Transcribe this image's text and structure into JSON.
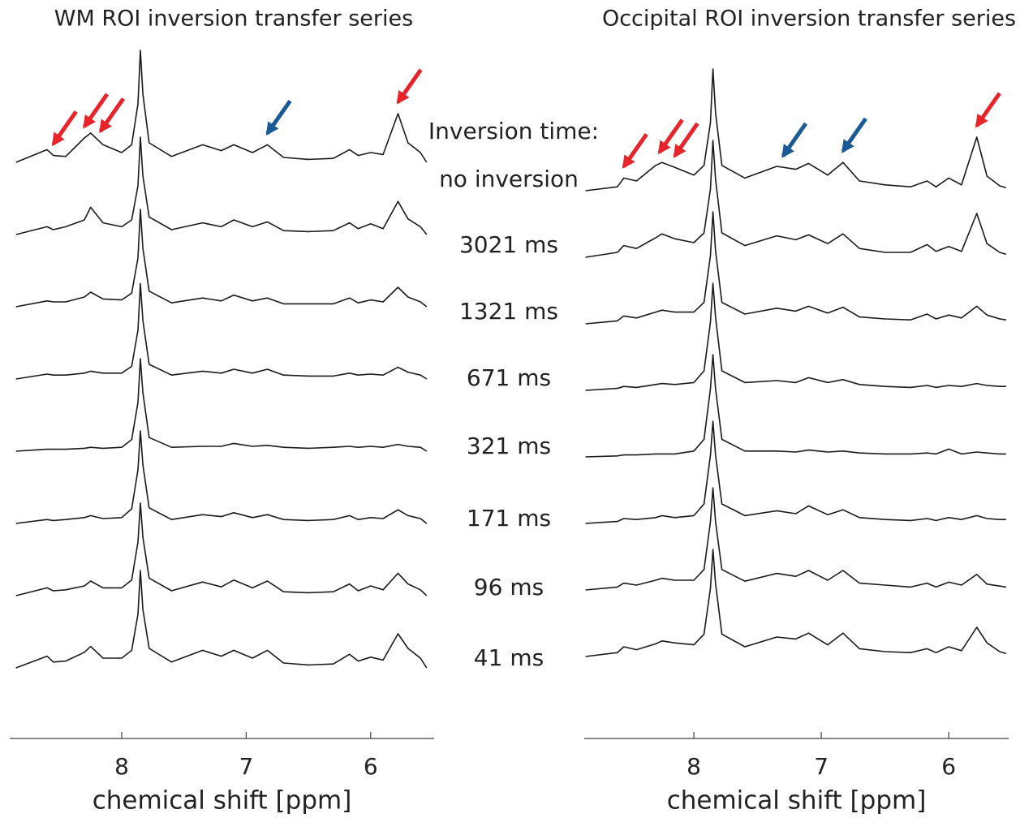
{
  "chart_data": [
    {
      "type": "line",
      "title": "WM ROI inversion transfer series",
      "xlabel": "chemical shift [ppm]",
      "xlim": [
        8.9,
        5.49
      ],
      "xticks": [
        8,
        7,
        6
      ],
      "annotation": "Inversion time:",
      "x": [
        8.85,
        8.6,
        8.55,
        8.45,
        8.3,
        8.25,
        8.15,
        8.0,
        7.92,
        7.87,
        7.85,
        7.83,
        7.78,
        7.6,
        7.35,
        7.2,
        7.1,
        6.95,
        6.83,
        6.7,
        6.5,
        6.3,
        6.17,
        6.1,
        6.0,
        5.9,
        5.78,
        5.7,
        5.6,
        5.55
      ],
      "series": [
        {
          "name": "no inversion",
          "color": "#1a1a1a",
          "values": [
            0,
            1.3,
            0.7,
            0.6,
            2.5,
            3.0,
            1.8,
            1.0,
            1.8,
            6.0,
            11.5,
            7.0,
            2.0,
            0.6,
            1.8,
            1.2,
            1.8,
            1.0,
            1.8,
            0.5,
            0.3,
            0.4,
            1.3,
            0.7,
            1.0,
            0.8,
            5.0,
            2.0,
            1.0,
            0
          ]
        },
        {
          "name": "3021 ms",
          "color": "#1a1a1a",
          "values": [
            0,
            0.8,
            0.5,
            0.8,
            1.5,
            2.8,
            1.2,
            0.8,
            1.5,
            5,
            10,
            6,
            1.8,
            0.5,
            1.2,
            0.8,
            1.5,
            0.8,
            1.3,
            0.4,
            0.3,
            0.4,
            1.2,
            0.6,
            1.1,
            0.6,
            3.4,
            1.6,
            0.8,
            0
          ]
        },
        {
          "name": "1321 ms",
          "color": "#1a1a1a",
          "values": [
            0,
            0.6,
            0.5,
            0.5,
            1.0,
            1.5,
            0.8,
            0.7,
            1.4,
            5,
            10,
            6,
            1.6,
            0.4,
            0.9,
            0.6,
            1.2,
            0.6,
            0.9,
            0.3,
            0.3,
            0.3,
            0.9,
            0.4,
            0.7,
            0.5,
            2.0,
            1.0,
            0.5,
            0
          ]
        },
        {
          "name": "671 ms",
          "color": "#1a1a1a",
          "values": [
            0,
            0.5,
            0.4,
            0.4,
            0.6,
            0.8,
            0.6,
            0.6,
            1.3,
            5,
            9.8,
            6,
            1.5,
            0.4,
            0.8,
            0.6,
            1.0,
            0.6,
            1.0,
            0.4,
            0.3,
            0.3,
            0.6,
            0.4,
            0.5,
            0.4,
            1.2,
            0.7,
            0.4,
            0
          ]
        },
        {
          "name": "321 ms",
          "color": "#1a1a1a",
          "values": [
            0,
            0.2,
            0.2,
            0.2,
            0.3,
            0.4,
            0.3,
            0.4,
            1.2,
            5,
            9.5,
            6,
            1.4,
            0.4,
            0.5,
            0.5,
            0.8,
            0.5,
            0.6,
            0.4,
            0.3,
            0.4,
            0.5,
            0.4,
            0.5,
            0.4,
            0.7,
            0.5,
            0.4,
            0
          ]
        },
        {
          "name": "171 ms",
          "color": "#1a1a1a",
          "values": [
            0,
            0.4,
            0.3,
            0.4,
            0.6,
            0.8,
            0.5,
            0.6,
            1.5,
            5.5,
            9.5,
            6,
            1.6,
            0.4,
            0.9,
            0.7,
            1.1,
            0.6,
            0.9,
            0.4,
            0.3,
            0.4,
            0.8,
            0.4,
            0.6,
            0.5,
            1.4,
            0.8,
            0.5,
            0
          ]
        },
        {
          "name": "96 ms",
          "color": "#1a1a1a",
          "values": [
            0,
            0.8,
            0.5,
            0.6,
            1.0,
            1.5,
            0.8,
            0.8,
            1.6,
            5.5,
            9.5,
            6,
            1.8,
            0.5,
            1.4,
            0.9,
            1.6,
            0.8,
            1.5,
            0.4,
            0.3,
            0.4,
            1.2,
            0.5,
            1.0,
            0.6,
            2.3,
            1.2,
            0.6,
            0
          ]
        },
        {
          "name": "41 ms",
          "color": "#1a1a1a",
          "values": [
            0,
            1.2,
            0.6,
            0.7,
            1.6,
            2.2,
            1.0,
            1.0,
            1.8,
            5.5,
            10,
            6,
            2.0,
            0.6,
            1.8,
            1.2,
            1.8,
            1.0,
            1.8,
            0.5,
            0.3,
            0.4,
            1.4,
            0.7,
            1.1,
            0.8,
            3.5,
            2.0,
            1.0,
            0
          ]
        }
      ],
      "arrows": [
        {
          "x": 8.55,
          "color": "#e8232a"
        },
        {
          "x": 8.3,
          "color": "#e8232a"
        },
        {
          "x": 8.17,
          "color": "#e8232a"
        },
        {
          "x": 6.83,
          "color": "#1a5a96"
        },
        {
          "x": 5.78,
          "color": "#e8232a"
        }
      ]
    },
    {
      "type": "line",
      "title": "Occipital ROI inversion transfer series",
      "xlabel": "chemical shift [ppm]",
      "xlim": [
        8.86,
        5.53
      ],
      "xticks": [
        8,
        7,
        6
      ],
      "x": [
        8.85,
        8.6,
        8.55,
        8.45,
        8.3,
        8.25,
        8.15,
        8.0,
        7.92,
        7.87,
        7.85,
        7.83,
        7.78,
        7.6,
        7.35,
        7.2,
        7.1,
        6.95,
        6.83,
        6.7,
        6.5,
        6.3,
        6.17,
        6.1,
        6.0,
        5.9,
        5.78,
        5.7,
        5.6,
        5.55
      ],
      "series": [
        {
          "color": "#1a1a1a",
          "values": [
            0,
            0.4,
            1.3,
            1.0,
            2.6,
            2.9,
            2.4,
            1.6,
            2.6,
            7,
            12.5,
            8,
            2.6,
            1.3,
            2.5,
            2.2,
            2.8,
            1.6,
            2.9,
            1.0,
            0.6,
            0.4,
            1.0,
            0.4,
            1.3,
            0.6,
            5.5,
            1.5,
            0.5,
            0.3
          ]
        },
        {
          "color": "#1a1a1a",
          "values": [
            0,
            0.5,
            1.2,
            0.9,
            2.0,
            2.4,
            1.9,
            1.5,
            2.5,
            7,
            12,
            8,
            2.5,
            1.2,
            2.2,
            1.8,
            2.3,
            1.4,
            2.4,
            0.9,
            0.5,
            0.5,
            1.3,
            0.6,
            1.1,
            0.6,
            4.5,
            1.4,
            0.5,
            0.3
          ]
        },
        {
          "color": "#1a1a1a",
          "values": [
            0,
            0.3,
            0.8,
            0.6,
            1.2,
            1.4,
            1.2,
            1.2,
            2.2,
            7,
            11.5,
            7.5,
            2.2,
            1.0,
            1.6,
            1.3,
            1.8,
            1.1,
            1.7,
            0.7,
            0.5,
            0.4,
            1.0,
            0.5,
            0.9,
            0.6,
            1.8,
            0.9,
            0.5,
            0.4
          ]
        },
        {
          "color": "#1a1a1a",
          "values": [
            0,
            0.2,
            0.4,
            0.3,
            0.6,
            0.7,
            0.6,
            0.8,
            2.0,
            7,
            11,
            7.5,
            2.0,
            0.8,
            1.0,
            0.8,
            1.3,
            0.8,
            1.1,
            0.6,
            0.4,
            0.3,
            0.5,
            0.3,
            0.5,
            0.4,
            0.7,
            0.5,
            0.4,
            0.4
          ]
        },
        {
          "color": "#1a1a1a",
          "values": [
            0,
            0.1,
            0.2,
            0.2,
            0.3,
            0.3,
            0.3,
            0.6,
            1.8,
            7,
            10.5,
            7,
            1.8,
            0.6,
            0.6,
            0.5,
            0.7,
            0.5,
            0.6,
            0.4,
            0.3,
            0.3,
            0.4,
            0.3,
            0.8,
            0.3,
            0.5,
            0.4,
            0.3,
            0.3
          ]
        },
        {
          "color": "#1a1a1a",
          "values": [
            0,
            0.2,
            0.5,
            0.4,
            0.6,
            0.8,
            0.6,
            0.8,
            2.0,
            7,
            10.5,
            7,
            2.0,
            0.8,
            1.3,
            1.0,
            1.8,
            0.9,
            1.4,
            0.6,
            0.4,
            0.3,
            0.5,
            0.3,
            0.6,
            0.4,
            0.8,
            0.5,
            0.4,
            0.4
          ]
        },
        {
          "color": "#1a1a1a",
          "values": [
            0,
            0.3,
            0.7,
            0.5,
            1.0,
            1.2,
            1.0,
            1.0,
            2.1,
            7,
            10.5,
            7,
            2.1,
            0.9,
            1.7,
            1.4,
            2.0,
            1.0,
            2.0,
            0.7,
            0.5,
            0.3,
            0.7,
            0.3,
            0.8,
            0.5,
            1.6,
            0.6,
            0.4,
            0.3
          ]
        },
        {
          "color": "#1a1a1a",
          "values": [
            0,
            0.4,
            1.0,
            0.7,
            1.3,
            1.6,
            1.4,
            1.2,
            2.3,
            7,
            11,
            7.5,
            2.3,
            1.0,
            2.0,
            1.8,
            2.4,
            1.2,
            2.4,
            0.8,
            0.5,
            0.4,
            0.8,
            0.4,
            1.0,
            0.6,
            3.0,
            1.4,
            0.5,
            0.3
          ]
        }
      ],
      "arrows": [
        {
          "x": 8.55,
          "color": "#e8232a"
        },
        {
          "x": 8.27,
          "color": "#e8232a"
        },
        {
          "x": 8.15,
          "color": "#e8232a"
        },
        {
          "x": 7.3,
          "color": "#1a5a96"
        },
        {
          "x": 6.83,
          "color": "#1a5a96"
        },
        {
          "x": 5.78,
          "color": "#e8232a"
        }
      ]
    }
  ]
}
